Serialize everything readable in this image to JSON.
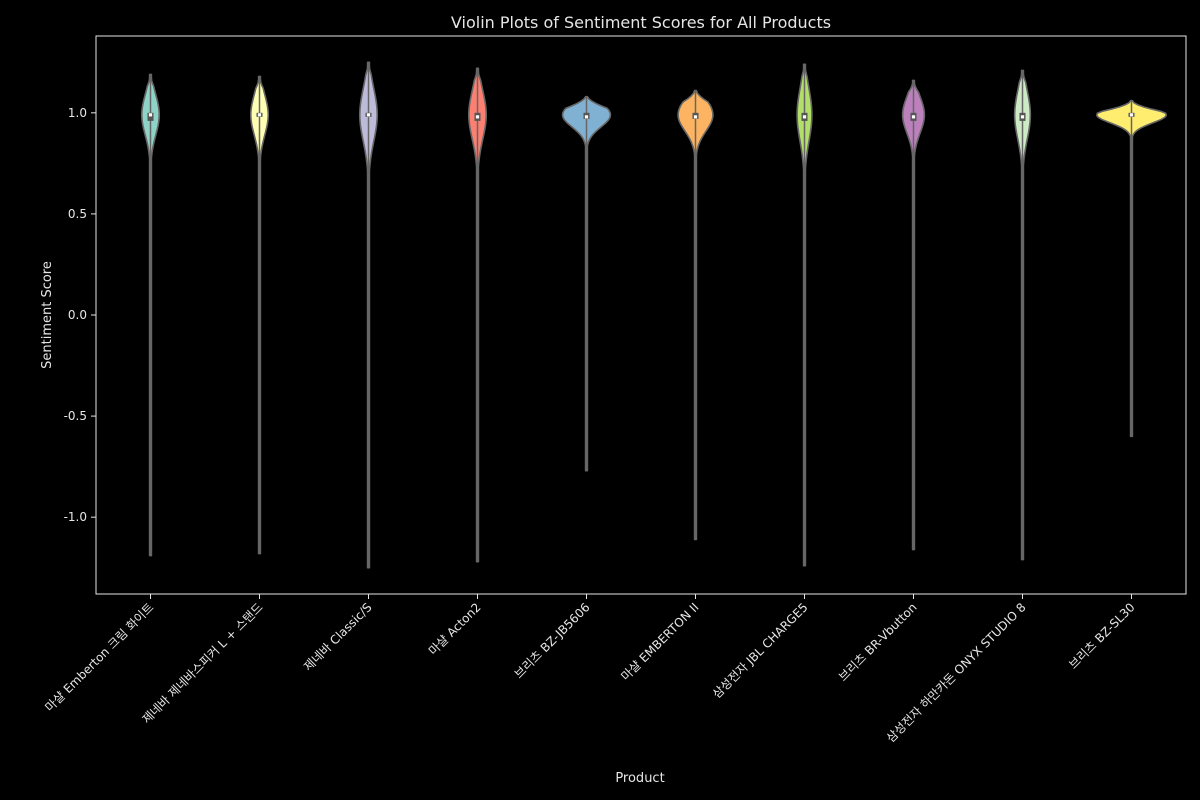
{
  "chart_data": {
    "type": "violin",
    "title": "Violin Plots of Sentiment Scores for All Products",
    "xlabel": "Product",
    "ylabel": "Sentiment Score",
    "ylim": [
      -1.38,
      1.38
    ],
    "yticks": [
      1.0,
      0.5,
      0.0,
      -0.5,
      -1.0
    ],
    "ytick_labels": [
      "1.0",
      "0.5",
      "0.0",
      "-0.5",
      "-1.0"
    ],
    "grid": false,
    "legend": "none",
    "categories": [
      "마샬 Emberton 크림 화이트",
      "제네바 제네바스피커 L + 스탠드",
      "제네바 Classic/S",
      "마샬 Acton2",
      "브리츠 BZ-JB5606",
      "마샬 EMBERTON II",
      "삼성전자 JBL CHARGE5",
      "브리츠 BR-Vbutton",
      "삼성전자 하만카돈 ONYX STUDIO 8",
      "브리츠 BZ-SL30"
    ],
    "series": [
      {
        "min": -1.19,
        "max": 1.19,
        "median": 0.99,
        "q1": 0.96,
        "q3": 1.0,
        "peak": 0.99,
        "width": 0.2,
        "sigma": 0.1,
        "color": "#8dd3c7"
      },
      {
        "min": -1.18,
        "max": 1.18,
        "median": 0.99,
        "q1": 0.98,
        "q3": 1.0,
        "peak": 0.99,
        "width": 0.2,
        "sigma": 0.1,
        "color": "#ffffb3"
      },
      {
        "min": -1.25,
        "max": 1.25,
        "median": 0.99,
        "q1": 0.98,
        "q3": 1.0,
        "peak": 0.99,
        "width": 0.2,
        "sigma": 0.13,
        "color": "#bebada"
      },
      {
        "min": -1.22,
        "max": 1.22,
        "median": 0.98,
        "q1": 0.96,
        "q3": 1.0,
        "peak": 0.99,
        "width": 0.2,
        "sigma": 0.12,
        "color": "#fb8072"
      },
      {
        "min": -0.77,
        "max": 1.08,
        "median": 0.98,
        "q1": 0.97,
        "q3": 1.0,
        "peak": 0.99,
        "width": 0.55,
        "sigma": 0.06,
        "color": "#80b1d3"
      },
      {
        "min": -1.11,
        "max": 1.11,
        "median": 0.98,
        "q1": 0.97,
        "q3": 1.0,
        "peak": 0.99,
        "width": 0.4,
        "sigma": 0.08,
        "color": "#fdb462"
      },
      {
        "min": -1.24,
        "max": 1.24,
        "median": 0.98,
        "q1": 0.96,
        "q3": 1.0,
        "peak": 0.99,
        "width": 0.17,
        "sigma": 0.13,
        "color": "#b3de69"
      },
      {
        "min": -1.16,
        "max": 1.16,
        "median": 0.98,
        "q1": 0.96,
        "q3": 1.0,
        "peak": 0.99,
        "width": 0.25,
        "sigma": 0.09,
        "color": "#bc80bd"
      },
      {
        "min": -1.21,
        "max": 1.21,
        "median": 0.98,
        "q1": 0.96,
        "q3": 1.0,
        "peak": 0.99,
        "width": 0.18,
        "sigma": 0.12,
        "color": "#ccebc5"
      },
      {
        "min": -0.6,
        "max": 1.06,
        "median": 0.99,
        "q1": 0.98,
        "q3": 1.0,
        "peak": 0.99,
        "width": 0.8,
        "sigma": 0.04,
        "color": "#ffed6f"
      }
    ]
  }
}
